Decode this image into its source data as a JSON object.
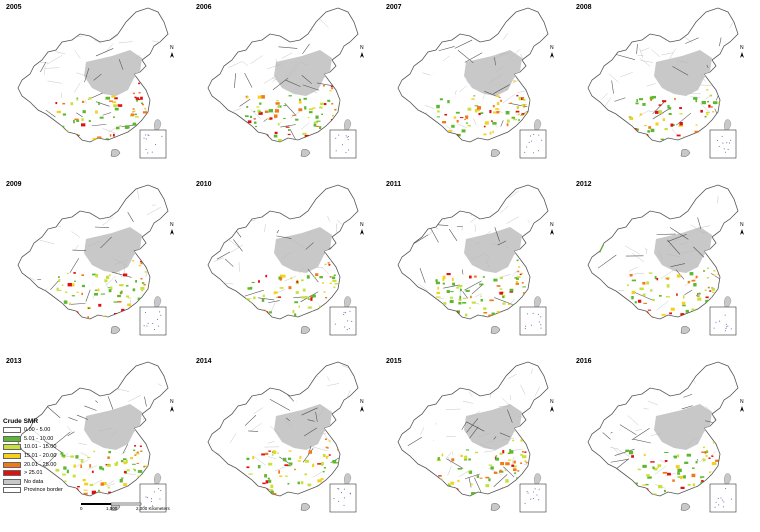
{
  "panels": [
    {
      "year": "2005",
      "intensity": 0.7,
      "seed": 3
    },
    {
      "year": "2006",
      "intensity": 0.75,
      "seed": 7
    },
    {
      "year": "2007",
      "intensity": 0.8,
      "seed": 11
    },
    {
      "year": "2008",
      "intensity": 0.65,
      "seed": 13
    },
    {
      "year": "2009",
      "intensity": 0.7,
      "seed": 17
    },
    {
      "year": "2010",
      "intensity": 0.6,
      "seed": 19
    },
    {
      "year": "2011",
      "intensity": 0.8,
      "seed": 23
    },
    {
      "year": "2012",
      "intensity": 0.7,
      "seed": 29
    },
    {
      "year": "2013",
      "intensity": 0.85,
      "seed": 31
    },
    {
      "year": "2014",
      "intensity": 0.8,
      "seed": 37
    },
    {
      "year": "2015",
      "intensity": 0.85,
      "seed": 41
    },
    {
      "year": "2016",
      "intensity": 0.7,
      "seed": 43
    }
  ],
  "legend": {
    "title": "Crude SMR",
    "items": [
      {
        "label": "0.00 - 5.00",
        "color": "#ffffff"
      },
      {
        "label": "5.01 - 10.00",
        "color": "#5cb82e"
      },
      {
        "label": "10.01 - 15.00",
        "color": "#c8e03c"
      },
      {
        "label": "15.01 - 20.00",
        "color": "#f5d020"
      },
      {
        "label": "20.01 - 25.00",
        "color": "#f07a1a"
      },
      {
        "label": "> 25.01",
        "color": "#e01010"
      },
      {
        "label": "No data",
        "color": "#c8c8c8"
      },
      {
        "label": "Province border",
        "color": "#ffffff"
      }
    ]
  },
  "scale": {
    "t0": "0",
    "t1": "1,000",
    "t2": "2,000 Kilometers"
  },
  "north_label": "N"
}
